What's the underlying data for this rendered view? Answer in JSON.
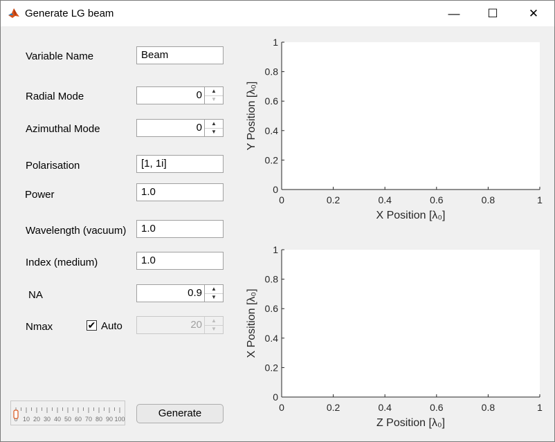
{
  "window": {
    "title": "Generate LG beam",
    "minimize": "—",
    "maximize": "☐",
    "close": "✕"
  },
  "form": {
    "variable_name": {
      "label": "Variable Name",
      "value": "Beam"
    },
    "radial_mode": {
      "label": "Radial Mode",
      "value": "0"
    },
    "azimuthal_mode": {
      "label": "Azimuthal Mode",
      "value": "0"
    },
    "polarisation": {
      "label": "Polarisation",
      "value": "[1, 1i]"
    },
    "power": {
      "label": "Power",
      "value": "1.0"
    },
    "wavelength": {
      "label": "Wavelength (vacuum)",
      "value": "1.0"
    },
    "index": {
      "label": "Index (medium)",
      "value": "1.0"
    },
    "na": {
      "label": "NA",
      "value": "0.9"
    },
    "nmax": {
      "label": "Nmax",
      "auto_label": "Auto",
      "auto_checked": true,
      "value": "20"
    },
    "generate_label": "Generate"
  },
  "slider": {
    "ticks": [
      "0",
      "10",
      "20",
      "30",
      "40",
      "50",
      "60",
      "70",
      "80",
      "90",
      "100"
    ],
    "value": 0
  },
  "plots": [
    {
      "xlabel": "X  Position  [λ₀]",
      "ylabel": "Y  Position  [λ₀]",
      "xticks": [
        "0",
        "0.2",
        "0.4",
        "0.6",
        "0.8",
        "1"
      ],
      "yticks": [
        "0",
        "0.2",
        "0.4",
        "0.6",
        "0.8",
        "1"
      ]
    },
    {
      "xlabel": "Z  Position  [λ₀]",
      "ylabel": "X  Position  [λ₀]",
      "xticks": [
        "0",
        "0.2",
        "0.4",
        "0.6",
        "0.8",
        "1"
      ],
      "yticks": [
        "0",
        "0.2",
        "0.4",
        "0.6",
        "0.8",
        "1"
      ]
    }
  ],
  "colors": {
    "accent": "#d95319",
    "axis": "#262626"
  }
}
